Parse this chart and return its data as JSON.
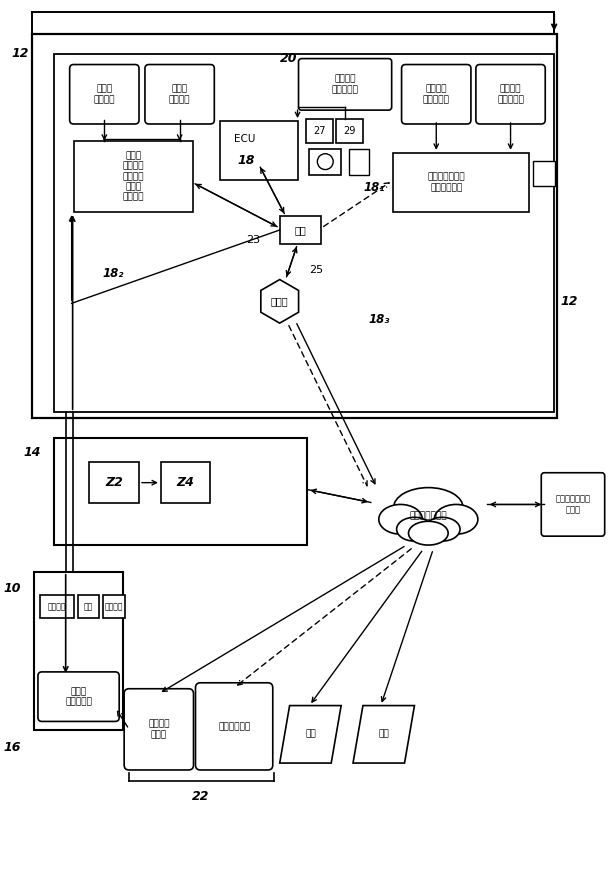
{
  "bg": "#ffffff",
  "labels": {
    "bev1": "飲料１\n待ち行列",
    "bev2": "飲料２\n待ち行列",
    "ui": "ユーザ\nインター\nフェース\nおよび\n待ち行列",
    "ecu": "ECU",
    "hub": "ハブ",
    "router": "ルータ",
    "proc": "プロセス\nモジュール",
    "custom1": "カスタム\nコンテンツ",
    "custom2": "カスタム\nコンテンツ",
    "mktg": "マーケティング\nディスプレイ",
    "internet": "インターネット",
    "card": "カードサービス\n事業者",
    "touch": "タッチ\nスクリーン",
    "smart": "スマート\nフォン",
    "web": "ウェブサイト",
    "kanri": "管理",
    "kanshi": "監視",
    "yomi": "読み取り",
    "kaikei": "会計",
    "scan": "スキャン",
    "n12": "12",
    "n12r": "12",
    "n14": "14",
    "n16": "16",
    "n18": "18",
    "n181": "18₁",
    "n182": "18₂",
    "n183": "18₃",
    "n20": "20",
    "n22": "22",
    "n23": "23",
    "n25": "25",
    "n27": "27",
    "n29": "29",
    "n10": "10",
    "z2": "Z2",
    "z4": "Z4"
  }
}
